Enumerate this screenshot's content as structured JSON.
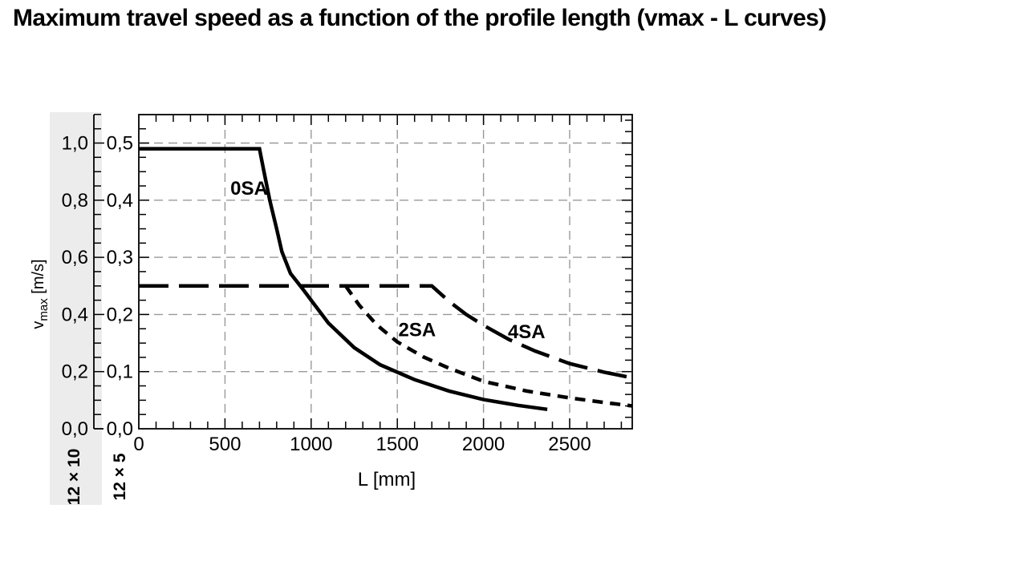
{
  "title": "Maximum travel speed as a function of the profile length (vmax - L curves)",
  "chart": {
    "x_axis": {
      "label": "L [mm]",
      "tick_labels": [
        "0",
        "500",
        "1000",
        "1500",
        "2000",
        "2500"
      ],
      "tick_values": [
        0,
        500,
        1000,
        1500,
        2000,
        2500
      ],
      "minor_tick_step": 100,
      "range": [
        0,
        2870
      ]
    },
    "y_axis_inner": {
      "scale_label": "12 × 5",
      "tick_labels": [
        "0,0",
        "0,1",
        "0,2",
        "0,3",
        "0,4",
        "0,5"
      ],
      "tick_values": [
        0,
        0.1,
        0.2,
        0.3,
        0.4,
        0.5
      ],
      "minor_tick_step": 0.025,
      "range": [
        0,
        0.55
      ]
    },
    "y_axis_outer": {
      "scale_label": "12 × 10",
      "tick_labels": [
        "0,0",
        "0,2",
        "0,4",
        "0,6",
        "0,8",
        "1,0"
      ],
      "tick_values": [
        0,
        0.2,
        0.4,
        0.6,
        0.8,
        1.0
      ],
      "minor_tick_step": 0.05,
      "range": [
        0,
        1.1
      ]
    },
    "y_unit": {
      "pre": "v",
      "sub": "max",
      "post": " [m/s]"
    }
  },
  "chart_data": {
    "type": "line",
    "title": "Maximum travel speed as a function of the profile length (vmax - L curves)",
    "xlabel": "L [mm]",
    "ylabel": "vmax [m/s]",
    "x_range": [
      0,
      2870
    ],
    "y_range": [
      0,
      0.55
    ],
    "grid": true,
    "legend": "inline-labels",
    "series": [
      {
        "name": "0SA",
        "line_style": "solid",
        "dash": [],
        "label_pos": [
          640,
          0.421
        ],
        "points": [
          [
            0,
            0.49
          ],
          [
            700,
            0.49
          ],
          [
            725,
            0.452
          ],
          [
            760,
            0.4
          ],
          [
            800,
            0.35
          ],
          [
            830,
            0.31
          ],
          [
            880,
            0.272
          ],
          [
            950,
            0.245
          ],
          [
            1000,
            0.225
          ],
          [
            1100,
            0.185
          ],
          [
            1250,
            0.142
          ],
          [
            1400,
            0.112
          ],
          [
            1600,
            0.086
          ],
          [
            1800,
            0.066
          ],
          [
            2000,
            0.051
          ],
          [
            2200,
            0.041
          ],
          [
            2370,
            0.034
          ]
        ]
      },
      {
        "name": "2SA",
        "line_style": "short-dash",
        "dash": [
          13,
          9
        ],
        "label_pos": [
          1615,
          0.173
        ],
        "points": [
          [
            1200,
            0.25
          ],
          [
            1280,
            0.216
          ],
          [
            1380,
            0.182
          ],
          [
            1500,
            0.152
          ],
          [
            1650,
            0.126
          ],
          [
            1800,
            0.106
          ],
          [
            2000,
            0.083
          ],
          [
            2250,
            0.066
          ],
          [
            2500,
            0.054
          ],
          [
            2700,
            0.046
          ],
          [
            2863,
            0.04
          ]
        ]
      },
      {
        "name": "4SA",
        "line_style": "long-dash",
        "dash": [
          37,
          13
        ],
        "label_pos": [
          2250,
          0.17
        ],
        "points": [
          [
            0,
            0.25
          ],
          [
            1700,
            0.25
          ],
          [
            1800,
            0.223
          ],
          [
            1900,
            0.2
          ],
          [
            2000,
            0.181
          ],
          [
            2150,
            0.156
          ],
          [
            2300,
            0.136
          ],
          [
            2500,
            0.114
          ],
          [
            2700,
            0.099
          ],
          [
            2863,
            0.089
          ]
        ]
      }
    ]
  },
  "colors": {
    "text": "#000000",
    "curve": "#000000",
    "grid": "#999999",
    "band": "#ececec",
    "background": "#ffffff"
  }
}
